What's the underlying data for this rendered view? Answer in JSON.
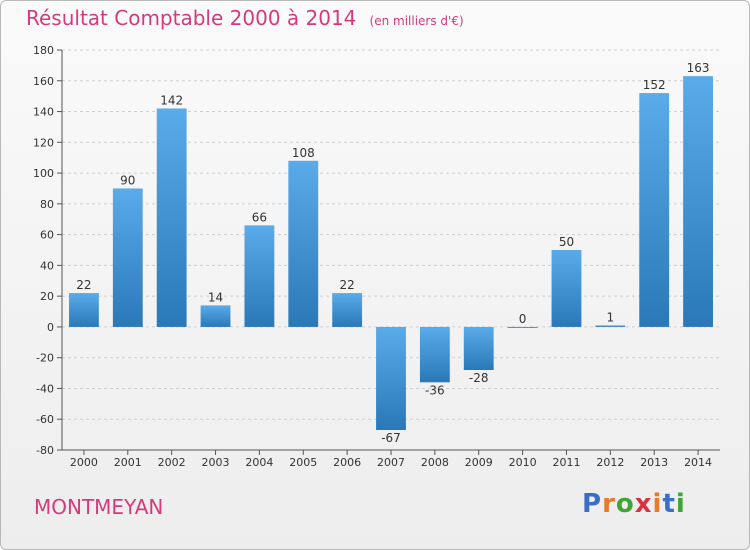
{
  "title": "Résultat Comptable 2000 à 2014",
  "unit": "(en milliers d'€)",
  "commune": "MONTMEYAN",
  "logo": {
    "text": "Proxiti",
    "letters": [
      "P",
      "r",
      "o",
      "x",
      "i",
      "t",
      "i"
    ],
    "colors": [
      "#3b6fc7",
      "#e8782a",
      "#3fa535",
      "#d9333f",
      "#e8782a",
      "#3b6fc7",
      "#3fa535"
    ]
  },
  "colors": {
    "title": "#d63a7c",
    "bar_light": "#5aabea",
    "bar_dark": "#2a78b8",
    "grid": "#cfcfcf",
    "axis": "#555555"
  },
  "chart_data": {
    "type": "bar",
    "title": "Résultat Comptable 2000 à 2014",
    "subtitle": "(en milliers d'€)",
    "categories": [
      "2000",
      "2001",
      "2002",
      "2003",
      "2004",
      "2005",
      "2006",
      "2007",
      "2008",
      "2009",
      "2010",
      "2011",
      "2012",
      "2013",
      "2014"
    ],
    "values": [
      22,
      90,
      142,
      14,
      66,
      108,
      22,
      -67,
      -36,
      -28,
      0,
      50,
      1,
      152,
      163
    ],
    "ylim": [
      -80,
      180
    ],
    "yticks": [
      -80,
      -60,
      -40,
      -20,
      0,
      20,
      40,
      60,
      80,
      100,
      120,
      140,
      160,
      180
    ],
    "grid": true,
    "xlabel": "",
    "ylabel": ""
  }
}
